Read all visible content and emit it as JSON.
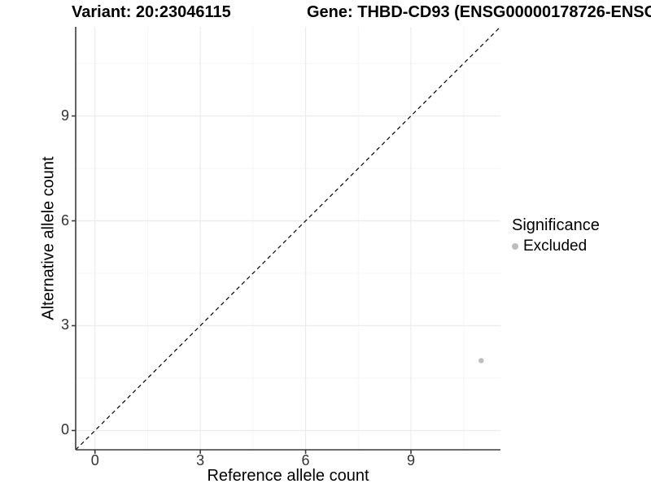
{
  "chart_data": {
    "type": "scatter",
    "titles": {
      "left": "Variant: 20:23046115",
      "right": "Gene: THBD-CD93 (ENSG00000178726-ENSG"
    },
    "xlabel": "Reference allele count",
    "ylabel": "Alternative allele count",
    "xlim": [
      -0.55,
      11.55
    ],
    "ylim": [
      -0.55,
      11.55
    ],
    "xticks": [
      0,
      3,
      6,
      9
    ],
    "yticks": [
      0,
      3,
      6,
      9
    ],
    "minor_xticks": [
      1.5,
      4.5,
      7.5,
      10.5
    ],
    "minor_yticks": [
      1.5,
      4.5,
      7.5,
      10.5
    ],
    "grid": "major+minor",
    "reference_line": {
      "kind": "identity",
      "dashed": true,
      "color": "#000000"
    },
    "series": [
      {
        "name": "Excluded",
        "color": "#bdbdbd",
        "points": [
          {
            "x": 11,
            "y": 2
          }
        ]
      }
    ],
    "legend": {
      "position": "right",
      "title": "Significance",
      "items": [
        {
          "label": "Excluded",
          "color": "#bdbdbd",
          "marker": "circle"
        }
      ]
    },
    "colors": {
      "background": "#ffffff",
      "grid_major": "#ebebeb",
      "grid_minor": "#f5f5f5",
      "axis_line": "#3c3c3c",
      "tick_text": "#333333",
      "point": "#bdbdbd"
    }
  }
}
